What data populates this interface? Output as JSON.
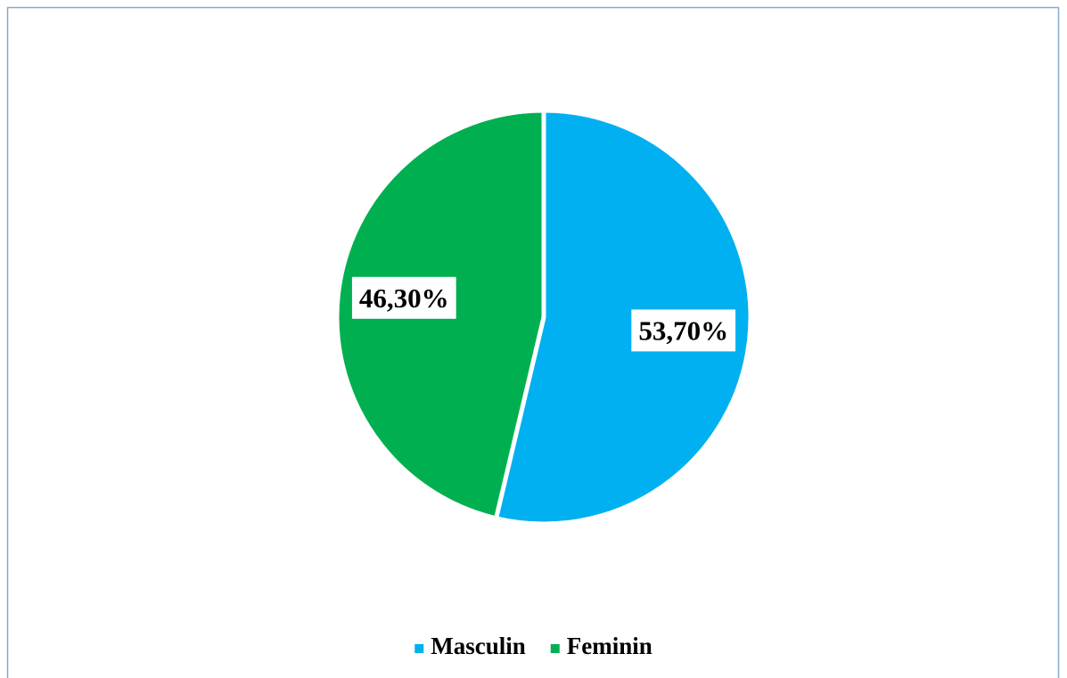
{
  "chart_data": {
    "type": "pie",
    "categories": [
      "Masculin",
      "Feminin"
    ],
    "values": [
      53.7,
      46.3
    ],
    "value_labels": [
      "53,70%",
      "46,30%"
    ],
    "colors": [
      "#00b0f0",
      "#00b050"
    ],
    "legend": "bottom"
  }
}
